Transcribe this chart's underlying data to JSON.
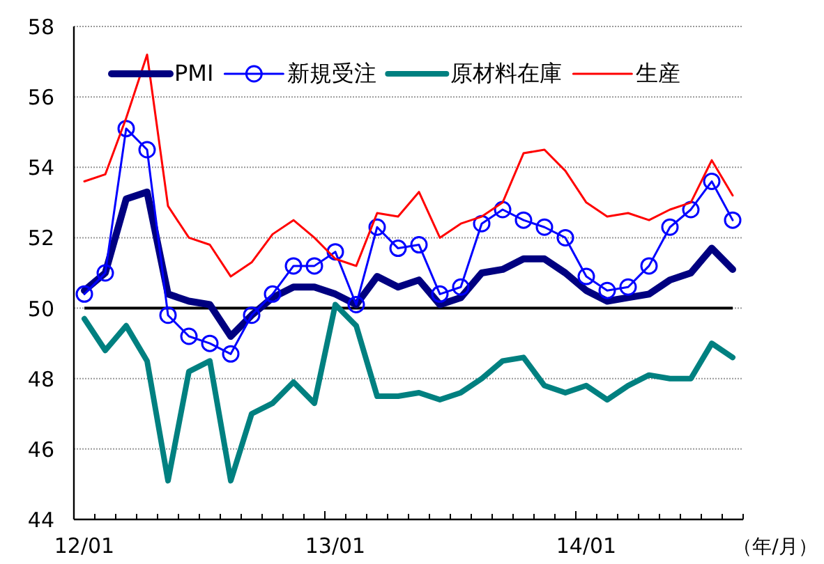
{
  "chart_data": {
    "type": "line",
    "xlabel": "（年/月）",
    "categories": [
      "12/01",
      null,
      null,
      null,
      null,
      null,
      null,
      null,
      null,
      null,
      null,
      null,
      "13/01",
      null,
      null,
      null,
      null,
      null,
      null,
      null,
      null,
      null,
      null,
      null,
      "14/01",
      null,
      null,
      null,
      null,
      null,
      null,
      null
    ],
    "series": [
      {
        "name": "PMI",
        "color": "#000080",
        "values": [
          50.5,
          51.0,
          53.1,
          53.3,
          50.4,
          50.2,
          50.1,
          49.2,
          49.8,
          50.3,
          50.6,
          50.6,
          50.4,
          50.1,
          50.9,
          50.6,
          50.8,
          50.1,
          50.3,
          51.0,
          51.1,
          51.4,
          51.4,
          51.0,
          50.5,
          50.2,
          50.3,
          50.4,
          50.8,
          51.0,
          51.7,
          51.1
        ]
      },
      {
        "name": "新規受注",
        "color": "#0000ff",
        "marker": "circle",
        "values": [
          50.4,
          51.0,
          55.1,
          54.5,
          49.8,
          49.2,
          49.0,
          48.7,
          49.8,
          50.4,
          51.2,
          51.2,
          51.6,
          50.1,
          52.3,
          51.7,
          51.8,
          50.4,
          50.6,
          52.4,
          52.8,
          52.5,
          52.3,
          52.0,
          50.9,
          50.5,
          50.6,
          51.2,
          52.3,
          52.8,
          53.6,
          52.5
        ]
      },
      {
        "name": "原材料在庫",
        "color": "#008080",
        "values": [
          49.7,
          48.8,
          49.5,
          48.5,
          45.1,
          48.2,
          48.5,
          45.1,
          47.0,
          47.3,
          47.9,
          47.3,
          50.1,
          49.5,
          47.5,
          47.5,
          47.6,
          47.4,
          47.6,
          48.0,
          48.5,
          48.6,
          47.8,
          47.6,
          47.8,
          47.4,
          47.8,
          48.1,
          48.0,
          48.0,
          49.0,
          48.6
        ]
      },
      {
        "name": "生産",
        "color": "#ff0000",
        "values": [
          53.6,
          53.8,
          55.4,
          57.2,
          52.9,
          52.0,
          51.8,
          50.9,
          51.3,
          52.1,
          52.5,
          52.0,
          51.4,
          51.2,
          52.7,
          52.6,
          53.3,
          52.0,
          52.4,
          52.6,
          53.0,
          54.4,
          54.5,
          53.9,
          53.0,
          52.6,
          52.7,
          52.5,
          52.8,
          53.0,
          54.2,
          53.2
        ]
      }
    ],
    "ylim": [
      44,
      58
    ],
    "yticks": [
      44,
      46,
      48,
      50,
      52,
      54,
      56,
      58
    ],
    "grid": "y",
    "legend": "top",
    "ref_lines": [
      {
        "axis": "y",
        "value": 50,
        "color": "#000000"
      }
    ]
  }
}
